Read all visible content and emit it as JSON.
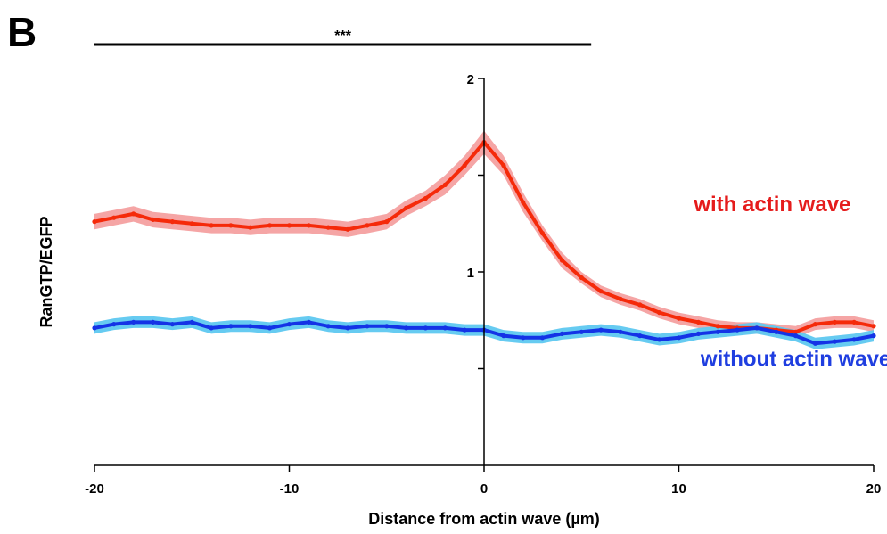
{
  "panel_label": "B",
  "significance": {
    "label": "***",
    "x_range": [
      -20,
      5.5
    ]
  },
  "chart_data": {
    "type": "line",
    "xlabel": "Distance from actin wave (µm)",
    "ylabel": "RanGTP/EGFP",
    "xlim": [
      -20,
      20
    ],
    "ylim": [
      0,
      2
    ],
    "x_ticks": [
      -20,
      -10,
      0,
      10,
      20
    ],
    "x_tick_labels": [
      "-20",
      "-10",
      "0",
      "10",
      "20"
    ],
    "y_ticks": [
      0.5,
      1,
      1.5,
      2
    ],
    "y_tick_labels": [
      "",
      "1",
      "",
      "2"
    ],
    "grid": false,
    "x": [
      -20,
      -19,
      -18,
      -17,
      -16,
      -15,
      -14,
      -13,
      -12,
      -11,
      -10,
      -9,
      -8,
      -7,
      -6,
      -5,
      -4,
      -3,
      -2,
      -1,
      0,
      1,
      2,
      3,
      4,
      5,
      6,
      7,
      8,
      9,
      10,
      11,
      12,
      13,
      14,
      15,
      16,
      17,
      18,
      19,
      20
    ],
    "series": [
      {
        "name": "with actin wave",
        "color": "#f52a0a",
        "band_color": "#f4a0a0",
        "values": [
          1.26,
          1.28,
          1.3,
          1.27,
          1.26,
          1.25,
          1.24,
          1.24,
          1.23,
          1.24,
          1.24,
          1.24,
          1.23,
          1.22,
          1.24,
          1.26,
          1.33,
          1.38,
          1.45,
          1.55,
          1.67,
          1.55,
          1.36,
          1.2,
          1.06,
          0.97,
          0.9,
          0.86,
          0.83,
          0.79,
          0.76,
          0.74,
          0.72,
          0.71,
          0.71,
          0.7,
          0.69,
          0.73,
          0.74,
          0.74,
          0.72
        ],
        "err": [
          0.04,
          0.04,
          0.04,
          0.04,
          0.04,
          0.04,
          0.04,
          0.04,
          0.04,
          0.04,
          0.04,
          0.04,
          0.04,
          0.04,
          0.04,
          0.04,
          0.04,
          0.04,
          0.05,
          0.05,
          0.06,
          0.05,
          0.05,
          0.04,
          0.04,
          0.03,
          0.03,
          0.03,
          0.03,
          0.03,
          0.03,
          0.03,
          0.03,
          0.03,
          0.03,
          0.03,
          0.03,
          0.03,
          0.03,
          0.03,
          0.03
        ]
      },
      {
        "name": "without actin wave",
        "color": "#1433e6",
        "band_color": "#5ec8f0",
        "values": [
          0.71,
          0.73,
          0.74,
          0.74,
          0.73,
          0.74,
          0.71,
          0.72,
          0.72,
          0.71,
          0.73,
          0.74,
          0.72,
          0.71,
          0.72,
          0.72,
          0.71,
          0.71,
          0.71,
          0.7,
          0.7,
          0.67,
          0.66,
          0.66,
          0.68,
          0.69,
          0.7,
          0.69,
          0.67,
          0.65,
          0.66,
          0.68,
          0.69,
          0.7,
          0.71,
          0.69,
          0.67,
          0.63,
          0.64,
          0.65,
          0.67
        ],
        "err": [
          0.03,
          0.03,
          0.03,
          0.03,
          0.03,
          0.03,
          0.03,
          0.03,
          0.03,
          0.03,
          0.03,
          0.03,
          0.03,
          0.03,
          0.03,
          0.03,
          0.03,
          0.03,
          0.03,
          0.03,
          0.03,
          0.03,
          0.03,
          0.03,
          0.03,
          0.03,
          0.03,
          0.03,
          0.03,
          0.03,
          0.03,
          0.03,
          0.03,
          0.03,
          0.03,
          0.03,
          0.03,
          0.03,
          0.03,
          0.03,
          0.03
        ]
      }
    ],
    "annotations": [
      {
        "text": "with actin wave",
        "color": "#e51c1c",
        "x": 14.8,
        "y": 1.35
      },
      {
        "text": "without actin wave",
        "color": "#1f3ee0",
        "x": 16.0,
        "y": 0.55
      }
    ]
  }
}
